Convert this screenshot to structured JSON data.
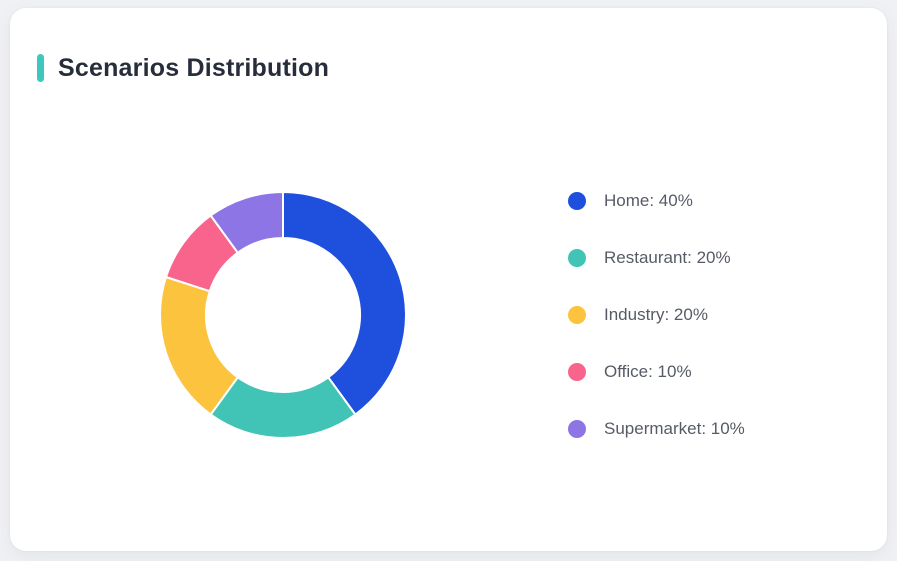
{
  "page": {
    "background_color": "#f0f1f4"
  },
  "card": {
    "title": "Scenarios Distribution",
    "accent_color": "#3ec7be"
  },
  "chart_data": {
    "type": "pie",
    "title": "Scenarios Distribution",
    "donut": true,
    "inner_radius_ratio": 0.63,
    "start_angle_deg": 0,
    "direction": "clockwise",
    "legend_position": "right",
    "slice_gap_color": "#ffffff",
    "segments": [
      {
        "name": "Home",
        "value_pct": 40,
        "color": "#1e4fdd",
        "label": "Home: 40%"
      },
      {
        "name": "Restaurant",
        "value_pct": 20,
        "color": "#41c4b6",
        "label": "Restaurant: 20%"
      },
      {
        "name": "Industry",
        "value_pct": 20,
        "color": "#fcc43e",
        "label": "Industry: 20%"
      },
      {
        "name": "Office",
        "value_pct": 10,
        "color": "#f8648b",
        "label": "Office: 10%"
      },
      {
        "name": "Supermarket",
        "value_pct": 10,
        "color": "#8d75e6",
        "label": "Supermarket: 10%"
      }
    ]
  }
}
